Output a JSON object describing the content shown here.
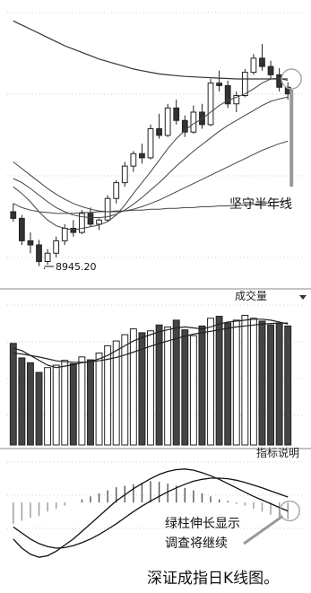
{
  "caption": "深证成指日K线图。",
  "chart_data": [
    {
      "type": "candlestick",
      "name_hint": "price-panel",
      "candles": [
        {
          "o": 9600,
          "h": 9700,
          "l": 9480,
          "c": 9520
        },
        {
          "o": 9520,
          "h": 9560,
          "l": 9200,
          "c": 9250
        },
        {
          "o": 9250,
          "h": 9350,
          "l": 9100,
          "c": 9200
        },
        {
          "o": 9200,
          "h": 9260,
          "l": 8945.2,
          "c": 9000
        },
        {
          "o": 9000,
          "h": 9150,
          "l": 8960,
          "c": 9100
        },
        {
          "o": 9100,
          "h": 9300,
          "l": 9050,
          "c": 9250
        },
        {
          "o": 9250,
          "h": 9450,
          "l": 9200,
          "c": 9400
        },
        {
          "o": 9400,
          "h": 9500,
          "l": 9300,
          "c": 9350
        },
        {
          "o": 9350,
          "h": 9620,
          "l": 9330,
          "c": 9580
        },
        {
          "o": 9580,
          "h": 9650,
          "l": 9420,
          "c": 9450
        },
        {
          "o": 9450,
          "h": 9520,
          "l": 9380,
          "c": 9500
        },
        {
          "o": 9500,
          "h": 9800,
          "l": 9480,
          "c": 9760
        },
        {
          "o": 9760,
          "h": 9980,
          "l": 9700,
          "c": 9950
        },
        {
          "o": 9950,
          "h": 10200,
          "l": 9900,
          "c": 10150
        },
        {
          "o": 10150,
          "h": 10330,
          "l": 10080,
          "c": 10300
        },
        {
          "o": 10300,
          "h": 10420,
          "l": 10180,
          "c": 10250
        },
        {
          "o": 10250,
          "h": 10650,
          "l": 10230,
          "c": 10600
        },
        {
          "o": 10600,
          "h": 10780,
          "l": 10480,
          "c": 10520
        },
        {
          "o": 10520,
          "h": 10900,
          "l": 10500,
          "c": 10850
        },
        {
          "o": 10850,
          "h": 10950,
          "l": 10650,
          "c": 10700
        },
        {
          "o": 10700,
          "h": 10760,
          "l": 10500,
          "c": 10560
        },
        {
          "o": 10560,
          "h": 10880,
          "l": 10540,
          "c": 10800
        },
        {
          "o": 10800,
          "h": 10900,
          "l": 10600,
          "c": 10650
        },
        {
          "o": 10650,
          "h": 11200,
          "l": 10630,
          "c": 11150
        },
        {
          "o": 11150,
          "h": 11300,
          "l": 11050,
          "c": 11120
        },
        {
          "o": 11120,
          "h": 11180,
          "l": 10850,
          "c": 10900
        },
        {
          "o": 10900,
          "h": 11050,
          "l": 10800,
          "c": 11000
        },
        {
          "o": 11000,
          "h": 11320,
          "l": 10980,
          "c": 11280
        },
        {
          "o": 11280,
          "h": 11500,
          "l": 11250,
          "c": 11450
        },
        {
          "o": 11450,
          "h": 11620,
          "l": 11300,
          "c": 11350
        },
        {
          "o": 11350,
          "h": 11420,
          "l": 11200,
          "c": 11250
        },
        {
          "o": 11250,
          "h": 11330,
          "l": 11050,
          "c": 11100
        },
        {
          "o": 11100,
          "h": 11160,
          "l": 10950,
          "c": 11020
        }
      ],
      "moving_averages": [
        {
          "values": [
            9900,
            9820,
            9720,
            9600,
            9500,
            9430,
            9400,
            9380,
            9400,
            9420,
            9440,
            9480,
            9560,
            9680,
            9820,
            9950,
            10080,
            10220,
            10360,
            10480,
            10580,
            10660,
            10720,
            10800,
            10880,
            10940,
            10980,
            11020,
            11080,
            11150,
            11200,
            11210,
            11180
          ]
        },
        {
          "values": [
            10000,
            9950,
            9880,
            9800,
            9720,
            9650,
            9600,
            9560,
            9540,
            9530,
            9530,
            9540,
            9570,
            9620,
            9690,
            9770,
            9860,
            9950,
            10050,
            10150,
            10240,
            10330,
            10410,
            10490,
            10570,
            10640,
            10700,
            10760,
            10820,
            10880,
            10930,
            10960,
            10980
          ]
        },
        {
          "values": [
            10200,
            10120,
            10040,
            9960,
            9880,
            9810,
            9750,
            9700,
            9660,
            9630,
            9610,
            9600,
            9600,
            9610,
            9630,
            9660,
            9700,
            9740,
            9790,
            9840,
            9890,
            9940,
            9990,
            10040,
            10090,
            10140,
            10190,
            10240,
            10290,
            10340,
            10380,
            10420,
            10450
          ]
        },
        {
          "values": [
            9700,
            9650,
            9620,
            9600,
            9590,
            9580,
            9580,
            9580,
            9590,
            9590,
            9600,
            9600,
            9610,
            9610,
            9620,
            9620,
            9630,
            9630,
            9640,
            9640,
            9650,
            9650,
            9660,
            9660,
            9670,
            9670,
            9680,
            9680,
            9690,
            9700,
            9710,
            9720,
            9730
          ]
        },
        {
          "values": [
            11900,
            11850,
            11800,
            11750,
            11700,
            11650,
            11600,
            11560,
            11520,
            11480,
            11440,
            11410,
            11380,
            11350,
            11320,
            11300,
            11280,
            11260,
            11250,
            11240,
            11230,
            11225,
            11220,
            11215,
            11210,
            11205,
            11200,
            11200,
            11200,
            11200,
            11200,
            11200,
            11200
          ]
        }
      ],
      "ylim": [
        8800,
        12000
      ],
      "annotations": [
        {
          "text": "坚守半年线",
          "target_index": 32
        },
        {
          "text": "8945.20",
          "target_index": 3
        }
      ]
    },
    {
      "type": "bar",
      "name_hint": "volume-panel",
      "header_label": "成交量",
      "values": [
        210,
        180,
        170,
        150,
        160,
        165,
        175,
        168,
        182,
        176,
        190,
        205,
        215,
        228,
        240,
        232,
        236,
        248,
        244,
        258,
        238,
        226,
        246,
        262,
        266,
        252,
        258,
        268,
        262,
        256,
        248,
        252,
        246
      ],
      "up": [
        false,
        false,
        false,
        false,
        true,
        true,
        true,
        false,
        true,
        false,
        true,
        true,
        true,
        true,
        true,
        false,
        true,
        false,
        true,
        false,
        false,
        true,
        false,
        true,
        false,
        false,
        true,
        true,
        true,
        false,
        false,
        false,
        false
      ],
      "moving_averages": [
        {
          "values": [
            200,
            195,
            185,
            175,
            165,
            160,
            163,
            166,
            170,
            172,
            178,
            185,
            195,
            205,
            215,
            222,
            228,
            234,
            238,
            242,
            244,
            242,
            240,
            244,
            250,
            254,
            256,
            258,
            260,
            260,
            258,
            254,
            250
          ]
        },
        {
          "values": [
            190,
            188,
            185,
            182,
            178,
            174,
            172,
            171,
            171,
            172,
            174,
            177,
            181,
            186,
            192,
            198,
            204,
            210,
            215,
            220,
            225,
            229,
            232,
            235,
            238,
            241,
            244,
            246,
            248,
            250,
            251,
            252,
            252
          ]
        }
      ],
      "ylim": [
        0,
        280
      ]
    },
    {
      "type": "bar",
      "name_hint": "macd-panel",
      "header_label": "指标说明",
      "values": [
        -70,
        -60,
        -50,
        -45,
        -30,
        -20,
        -10,
        0,
        10,
        20,
        30,
        40,
        50,
        55,
        60,
        65,
        70,
        68,
        62,
        55,
        48,
        40,
        30,
        20,
        10,
        5,
        -5,
        -10,
        -20,
        -30,
        -40,
        -48,
        -55
      ],
      "lines": [
        {
          "values": [
            -120,
            -150,
            -170,
            -180,
            -175,
            -160,
            -140,
            -120,
            -95,
            -70,
            -45,
            -20,
            5,
            25,
            45,
            62,
            78,
            92,
            102,
            108,
            110,
            106,
            98,
            88,
            76,
            62,
            48,
            34,
            20,
            8,
            -4,
            -16,
            -28
          ]
        },
        {
          "values": [
            -80,
            -100,
            -120,
            -135,
            -145,
            -150,
            -148,
            -142,
            -132,
            -120,
            -105,
            -88,
            -70,
            -50,
            -30,
            -12,
            5,
            20,
            35,
            48,
            60,
            70,
            76,
            80,
            80,
            78,
            73,
            66,
            57,
            48,
            38,
            28,
            18
          ]
        }
      ],
      "ylim": [
        -200,
        130
      ],
      "annotations": [
        {
          "text": "绿柱伸长显示",
          "target_index": 32
        },
        {
          "text": "调查将继续",
          "target_index": 32
        }
      ]
    }
  ]
}
